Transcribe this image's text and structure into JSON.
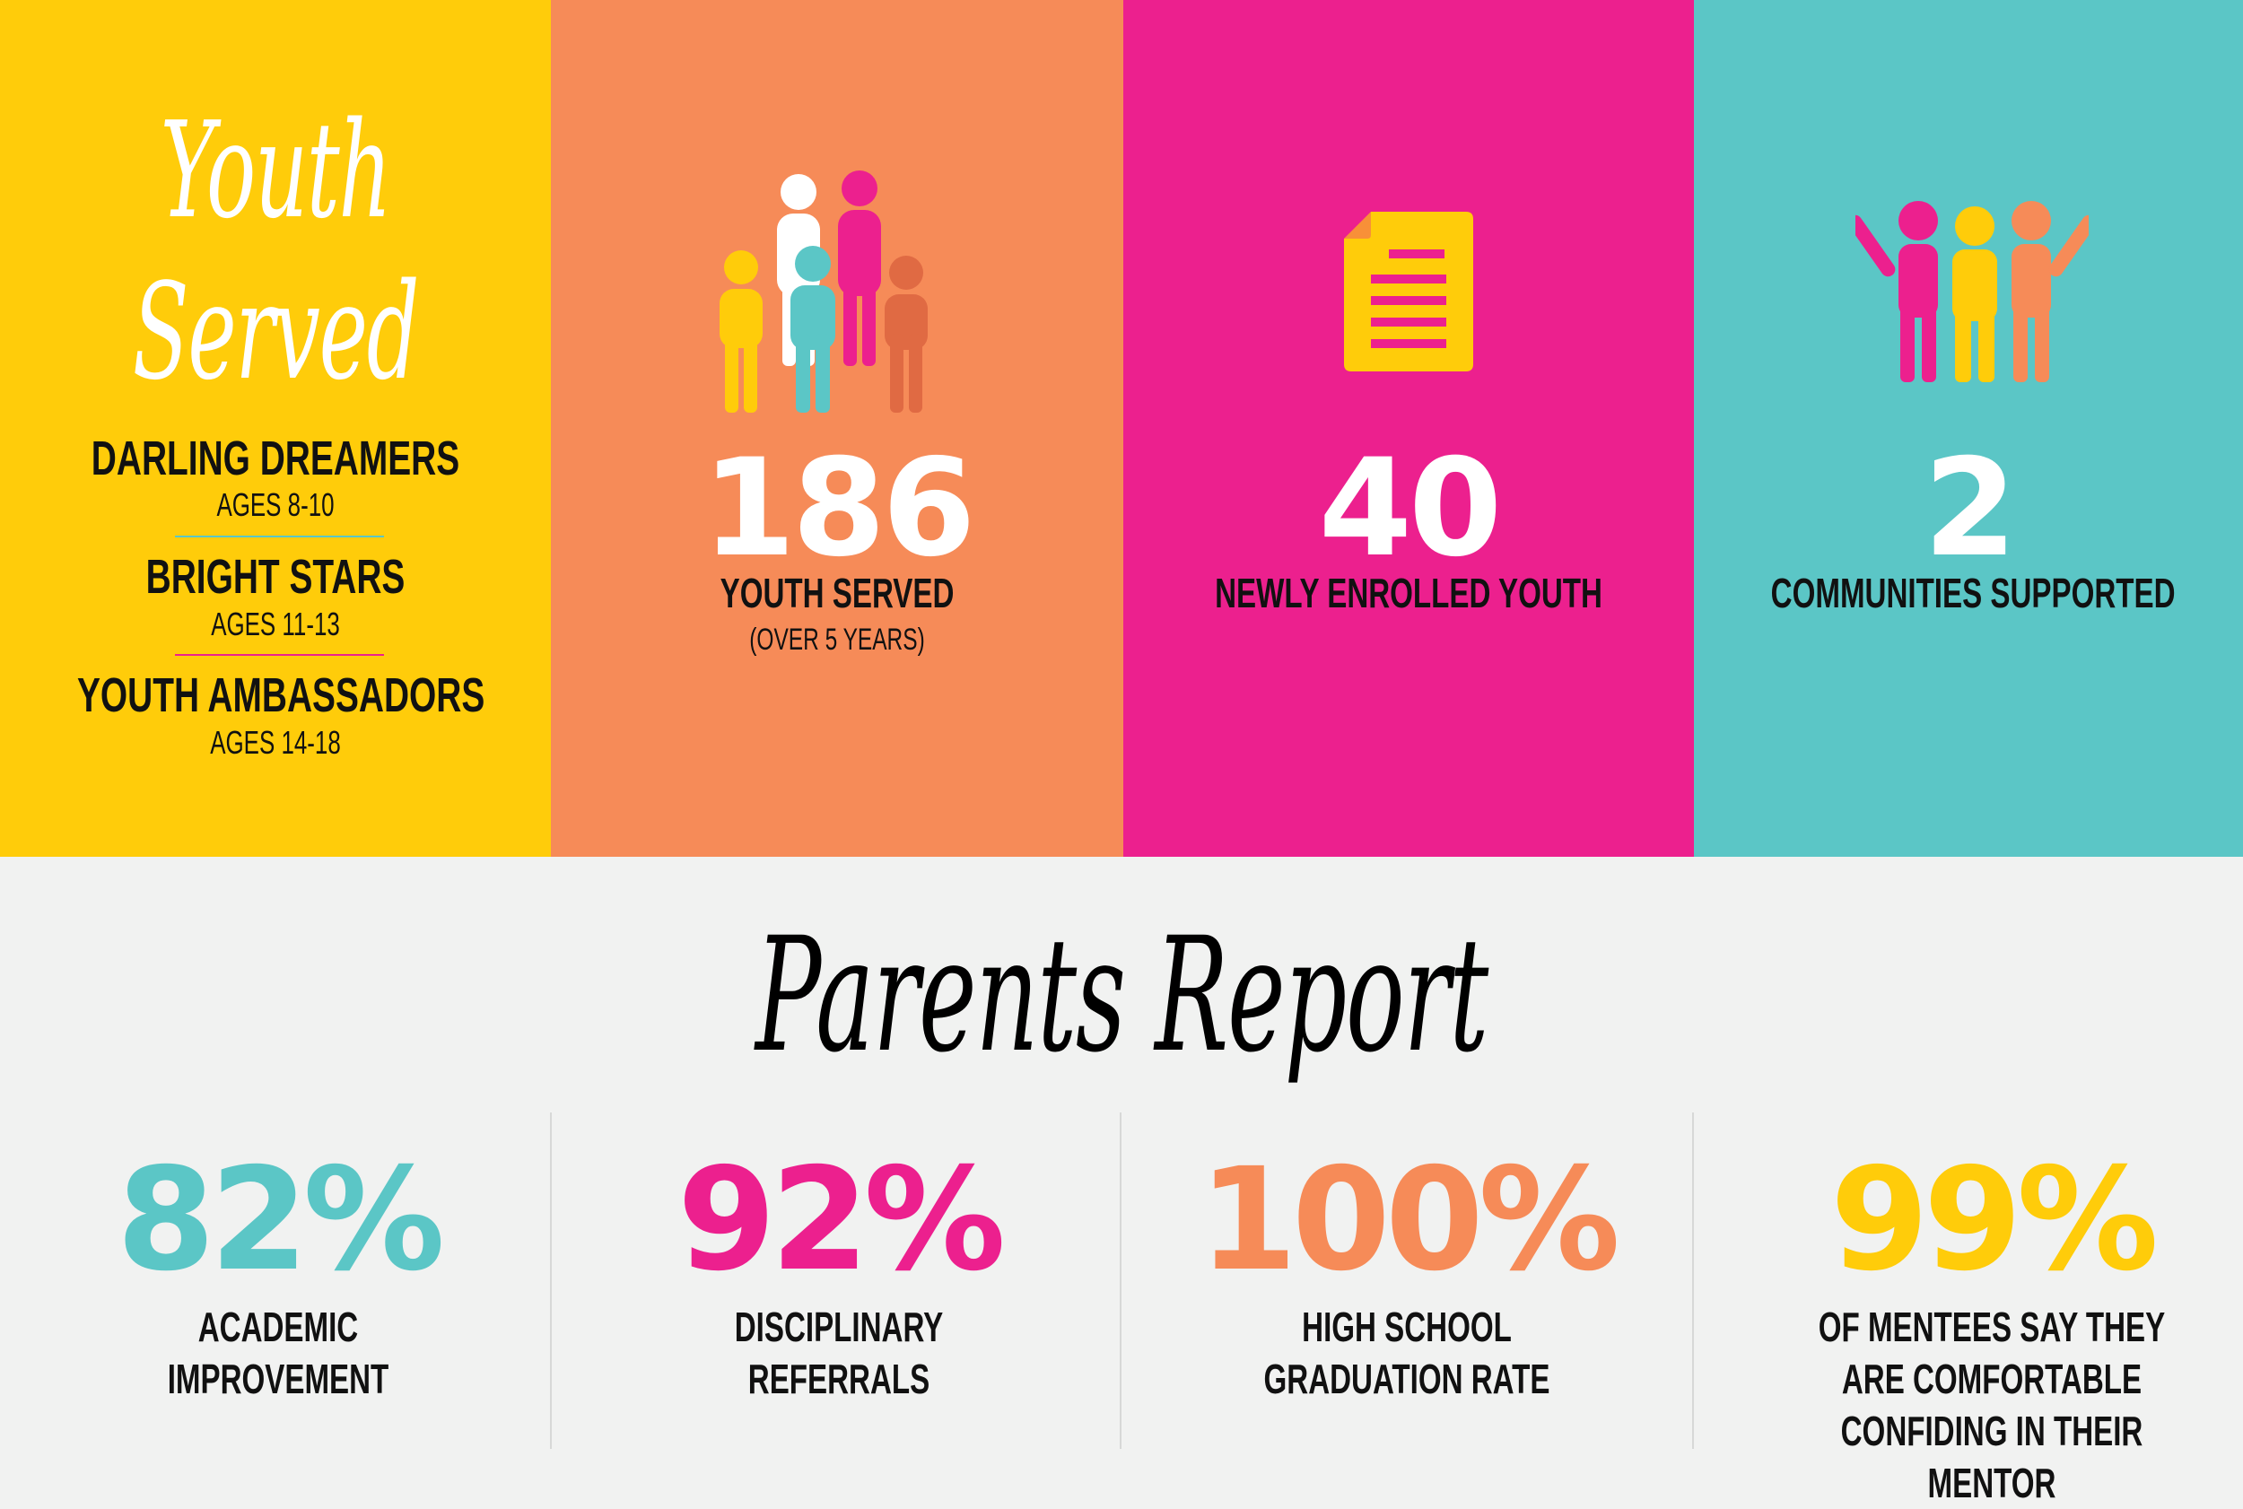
{
  "youth_served": {
    "title_line1": "Youth",
    "title_line2": "Served",
    "groups": [
      {
        "name": "DARLING DREAMERS",
        "ages": "AGES 8-10",
        "divider_color": "#5BC6C6"
      },
      {
        "name": "BRIGHT STARS",
        "ages": "AGES 11-13",
        "divider_color": "#EC208E"
      },
      {
        "name": "YOUTH AMBASSADORS",
        "ages": "AGES 14-18"
      }
    ]
  },
  "stats_top": [
    {
      "number": "186",
      "label": "YOUTH SERVED",
      "sublabel": "(OVER  5 YEARS)",
      "icon": "people-group-icon"
    },
    {
      "number": "40",
      "label": "NEWLY ENROLLED YOUTH",
      "icon": "document-icon"
    },
    {
      "number": "2",
      "label": "COMMUNITIES SUPPORTED",
      "icon": "cheering-people-icon"
    }
  ],
  "parents_report": {
    "title": "Parents Report",
    "stats": [
      {
        "value": "82%",
        "label": "ACADEMIC IMPROVEMENT",
        "color": "#5BC6C6"
      },
      {
        "value": "92%",
        "label": "DISCIPLINARY REFERRALS",
        "color": "#EC208E"
      },
      {
        "value": "100%",
        "label": "HIGH SCHOOL GRADUATION RATE",
        "color": "#F68B58"
      },
      {
        "value": "99%",
        "label": "OF MENTEES SAY THEY ARE COMFORTABLE CONFIDING IN THEIR MENTOR",
        "color": "#FFCC0A"
      }
    ]
  },
  "colors": {
    "yellow": "#FFCC0A",
    "orange": "#F68B58",
    "pink": "#EC208E",
    "teal": "#5BC6C6",
    "dark_orange": "#E06A43",
    "background": "#F1F2F1"
  }
}
